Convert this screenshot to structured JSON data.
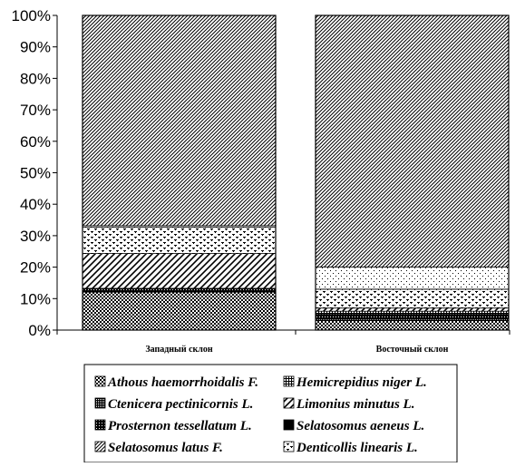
{
  "chart_data": {
    "type": "bar",
    "stacked": true,
    "normalized": true,
    "title": "",
    "xlabel": "",
    "ylabel": "",
    "ylim": [
      0,
      100
    ],
    "yticks": [
      "0%",
      "10%",
      "20%",
      "30%",
      "40%",
      "50%",
      "60%",
      "70%",
      "80%",
      "90%",
      "100%"
    ],
    "categories": [
      "Западный склон",
      "Восточный склон"
    ],
    "grid": false,
    "legend_position": "bottom",
    "series": [
      {
        "name": "Athous haemorrhoidalis F.",
        "values": [
          12,
          3
        ],
        "pattern": "checker-fine"
      },
      {
        "name": "Ctenicera pectinicornis  L.",
        "values": [
          0.5,
          0.5
        ],
        "pattern": "checker-dense"
      },
      {
        "name": "Prosternon tessellatum  L.",
        "values": [
          0.5,
          1
        ],
        "pattern": "grid"
      },
      {
        "name": "Selatosomus aeneus L.",
        "values": [
          0.2,
          0.5
        ],
        "pattern": "solid"
      },
      {
        "name": "Hemicrepidius niger L.",
        "values": [
          0,
          1
        ],
        "pattern": "hgrid"
      },
      {
        "name": "Limonius minutus  L.",
        "values": [
          11,
          1
        ],
        "pattern": "diag-wide"
      },
      {
        "name": "Denticollis linearis  L.",
        "values": [
          8.3,
          6
        ],
        "pattern": "bricks"
      },
      {
        "name": "",
        "values": [
          0.5,
          7
        ],
        "pattern": "dots-sparse"
      },
      {
        "name": "Selatosomus latus F.",
        "values": [
          66.5,
          80
        ],
        "pattern": "diag-dense"
      }
    ],
    "colors": {
      "ink": "#000000",
      "paper": "#ffffff"
    }
  }
}
